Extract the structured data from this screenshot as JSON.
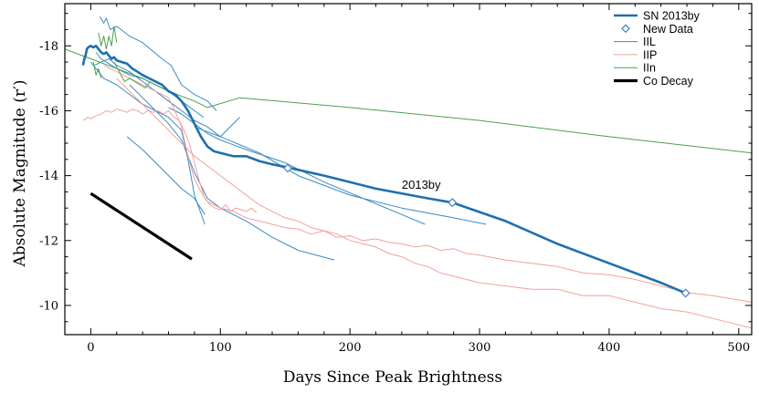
{
  "chart_data": {
    "type": "line",
    "xlabel": "Days Since Peak Brightness",
    "ylabel": "Absolute Magnitude (r′)",
    "xlim": [
      -20,
      510
    ],
    "ylim": [
      -9.1,
      -19.3
    ],
    "x_ticks": [
      0,
      100,
      200,
      300,
      400,
      500
    ],
    "y_ticks": [
      -10,
      -12,
      -14,
      -16,
      -18
    ],
    "legend_location": "top-right",
    "legend": [
      {
        "label": "SN 2013by",
        "style": "line-thick",
        "color": "#1f6fad"
      },
      {
        "label": "New Data",
        "style": "diamond",
        "color": "#4a80c0"
      },
      {
        "label": "IIL",
        "style": "line",
        "color": "#3a8ac2"
      },
      {
        "label": "IIP",
        "style": "line",
        "color": "#f4a09a"
      },
      {
        "label": "IIn",
        "style": "line",
        "color": "#4aa04a"
      },
      {
        "label": "Co Decay",
        "style": "line-heavy",
        "color": "#000000"
      }
    ],
    "annotations": [
      {
        "text": "2013by",
        "x": 240,
        "y": -13.6
      }
    ],
    "series": [
      {
        "name": "SN 2013by",
        "color": "#1f6fad",
        "width": 2.6,
        "x": [
          -6,
          -5,
          -4,
          -3,
          -2,
          0,
          2,
          4,
          6,
          8,
          10,
          12,
          14,
          16,
          18,
          20,
          24,
          28,
          32,
          36,
          40,
          45,
          50,
          55,
          60,
          65,
          70,
          75,
          80,
          85,
          90,
          95,
          100,
          110,
          120,
          130,
          140,
          152,
          180,
          220,
          260,
          279,
          320,
          360,
          400,
          440,
          459
        ],
        "y": [
          -17.4,
          -17.6,
          -17.7,
          -17.9,
          -17.95,
          -18.0,
          -17.95,
          -18.0,
          -17.9,
          -17.8,
          -17.75,
          -17.8,
          -17.7,
          -17.6,
          -17.65,
          -17.55,
          -17.5,
          -17.45,
          -17.3,
          -17.2,
          -17.1,
          -17.0,
          -16.9,
          -16.8,
          -16.6,
          -16.5,
          -16.3,
          -16.0,
          -15.6,
          -15.2,
          -14.9,
          -14.75,
          -14.7,
          -14.6,
          -14.6,
          -14.45,
          -14.35,
          -14.25,
          -14.0,
          -13.6,
          -13.3,
          -13.17,
          -12.6,
          -11.9,
          -11.3,
          -10.7,
          -10.38
        ]
      },
      {
        "name": "New Data",
        "type": "markers",
        "color": "#4a80c0",
        "x": [
          152,
          279,
          459
        ],
        "y": [
          -14.23,
          -13.17,
          -10.38
        ]
      },
      {
        "name": "IIL-a",
        "color": "#3a8ac2",
        "width": 1,
        "x": [
          7,
          10,
          12,
          15,
          20,
          30,
          40,
          55,
          62,
          70,
          80,
          90,
          97
        ],
        "y": [
          -18.9,
          -18.7,
          -18.85,
          -18.5,
          -18.6,
          -18.3,
          -18.1,
          -17.6,
          -17.4,
          -16.8,
          -16.5,
          -16.3,
          -16.0
        ]
      },
      {
        "name": "IIL-b",
        "color": "#3a8ac2",
        "width": 1,
        "x": [
          4,
          8,
          12,
          20,
          30,
          40,
          50,
          60,
          70,
          80,
          87
        ],
        "y": [
          -17.8,
          -17.6,
          -17.5,
          -17.3,
          -17.1,
          -17.0,
          -16.8,
          -16.6,
          -16.3,
          -16.0,
          -15.8
        ]
      },
      {
        "name": "IIL-c",
        "color": "#3a8ac2",
        "width": 1,
        "x": [
          3,
          8,
          14,
          20,
          30,
          40,
          50,
          60,
          70,
          80,
          90,
          100,
          115
        ],
        "y": [
          -17.4,
          -17.5,
          -17.6,
          -17.4,
          -17.2,
          -16.9,
          -16.6,
          -16.3,
          -16.0,
          -15.7,
          -15.5,
          -15.2,
          -15.8
        ]
      },
      {
        "name": "IIL-d",
        "color": "#3a8ac2",
        "width": 1,
        "x": [
          0,
          10,
          20,
          30,
          40,
          50,
          60,
          70,
          75,
          80,
          88
        ],
        "y": [
          -17.5,
          -17.0,
          -16.8,
          -16.5,
          -16.2,
          -16.0,
          -15.8,
          -15.4,
          -14.5,
          -13.4,
          -12.5
        ]
      },
      {
        "name": "IIL-e",
        "color": "#3a8ac2",
        "width": 1,
        "x": [
          28,
          40,
          50,
          60,
          70,
          80,
          88
        ],
        "y": [
          -15.2,
          -14.8,
          -14.4,
          -14.0,
          -13.6,
          -13.3,
          -12.8
        ]
      },
      {
        "name": "IIL-f",
        "color": "#3a8ac2",
        "width": 1,
        "x": [
          30,
          40,
          50,
          60,
          70,
          80,
          90,
          100,
          120,
          140,
          160,
          188
        ],
        "y": [
          -16.8,
          -16.4,
          -16.0,
          -15.6,
          -15.1,
          -14.1,
          -13.3,
          -13.0,
          -12.6,
          -12.1,
          -11.7,
          -11.4
        ]
      },
      {
        "name": "IIL-g",
        "color": "#3a8ac2",
        "width": 1,
        "x": [
          60,
          70,
          80,
          90,
          100,
          120,
          150,
          180,
          210,
          240,
          258
        ],
        "y": [
          -16.1,
          -15.9,
          -15.6,
          -15.3,
          -15.1,
          -14.8,
          -14.4,
          -13.8,
          -13.3,
          -12.8,
          -12.5
        ]
      },
      {
        "name": "IIL-h",
        "color": "#3a8ac2",
        "width": 1,
        "x": [
          80,
          100,
          130,
          160,
          200,
          240,
          280,
          305
        ],
        "y": [
          -15.5,
          -15.2,
          -14.7,
          -14.0,
          -13.4,
          -13.0,
          -12.7,
          -12.5
        ]
      },
      {
        "name": "IIP-a",
        "color": "#f4a09a",
        "width": 1,
        "x": [
          -6,
          -2,
          0,
          4,
          8,
          12,
          16,
          20,
          24,
          28,
          32,
          36,
          40,
          44,
          48,
          52,
          56,
          60,
          64,
          68,
          72,
          76,
          80,
          84,
          88,
          92,
          96,
          100,
          104,
          108,
          112,
          116,
          120,
          124,
          128
        ],
        "y": [
          -15.7,
          -15.8,
          -15.75,
          -15.85,
          -15.9,
          -16.0,
          -15.95,
          -16.05,
          -16.0,
          -15.95,
          -16.05,
          -16.0,
          -15.9,
          -16.0,
          -15.95,
          -16.0,
          -15.9,
          -16.0,
          -15.8,
          -15.7,
          -15.4,
          -15.0,
          -14.4,
          -13.8,
          -13.3,
          -13.1,
          -13.0,
          -12.95,
          -13.1,
          -12.9,
          -13.0,
          -12.95,
          -12.9,
          -13.0,
          -12.85
        ]
      },
      {
        "name": "IIP-b",
        "color": "#f4a09a",
        "width": 1,
        "x": [
          10,
          20,
          30,
          40,
          50,
          60,
          65,
          70,
          75,
          80,
          85,
          90,
          100,
          110,
          120,
          130,
          140,
          150,
          160,
          170,
          180,
          190,
          200,
          210,
          220,
          230,
          240,
          250,
          260,
          270,
          280,
          290,
          300,
          320,
          340,
          360,
          380,
          400,
          420,
          440,
          460,
          480,
          510
        ],
        "y": [
          -17.4,
          -17.2,
          -17.0,
          -16.8,
          -16.6,
          -16.4,
          -16.0,
          -15.5,
          -14.6,
          -13.9,
          -13.5,
          -13.2,
          -13.0,
          -12.9,
          -12.7,
          -12.6,
          -12.5,
          -12.4,
          -12.35,
          -12.2,
          -12.3,
          -12.1,
          -12.15,
          -12.0,
          -12.05,
          -11.95,
          -11.9,
          -11.8,
          -11.85,
          -11.7,
          -11.75,
          -11.6,
          -11.55,
          -11.4,
          -11.3,
          -11.2,
          -11.0,
          -10.95,
          -10.8,
          -10.6,
          -10.4,
          -10.3,
          -10.1
        ]
      },
      {
        "name": "IIP-c",
        "color": "#f4a09a",
        "width": 1,
        "x": [
          20,
          30,
          40,
          50,
          60,
          70,
          80,
          90,
          100,
          110,
          120,
          130,
          140,
          150,
          160,
          170,
          180,
          190,
          200,
          210,
          220,
          230,
          240,
          250,
          260,
          270,
          280,
          290,
          300,
          320,
          340,
          360,
          380,
          400,
          420,
          440,
          460,
          480,
          510
        ],
        "y": [
          -17.0,
          -16.6,
          -16.2,
          -15.8,
          -15.4,
          -15.0,
          -14.6,
          -14.3,
          -14.0,
          -13.7,
          -13.4,
          -13.1,
          -12.9,
          -12.7,
          -12.6,
          -12.4,
          -12.3,
          -12.2,
          -12.0,
          -11.9,
          -11.8,
          -11.6,
          -11.5,
          -11.3,
          -11.2,
          -11.0,
          -10.9,
          -10.8,
          -10.7,
          -10.6,
          -10.5,
          -10.5,
          -10.3,
          -10.3,
          -10.1,
          -9.9,
          -9.8,
          -9.6,
          -9.3
        ]
      },
      {
        "name": "IIn-a",
        "color": "#4aa04a",
        "width": 1,
        "x": [
          -20,
          0,
          20,
          40,
          60,
          80,
          90,
          115,
          200,
          300,
          400,
          510
        ],
        "y": [
          -17.9,
          -17.6,
          -17.3,
          -17.0,
          -16.6,
          -16.3,
          -16.1,
          -16.4,
          -16.1,
          -15.7,
          -15.2,
          -14.7
        ]
      },
      {
        "name": "IIn-b",
        "color": "#4aa04a",
        "width": 1,
        "x": [
          6,
          8,
          10,
          12,
          14,
          16,
          18,
          20
        ],
        "y": [
          -18.4,
          -18.0,
          -18.3,
          -17.9,
          -18.3,
          -18.0,
          -18.6,
          -18.1
        ]
      },
      {
        "name": "IIn-c",
        "color": "#4aa04a",
        "width": 1,
        "x": [
          18,
          22,
          26,
          30,
          34,
          38,
          42,
          46
        ],
        "y": [
          -17.5,
          -17.2,
          -16.9,
          -17.0,
          -16.9,
          -16.8,
          -16.7,
          -16.9
        ]
      },
      {
        "name": "IIn-d",
        "color": "#4aa04a",
        "width": 1,
        "x": [
          2,
          4,
          6,
          8
        ],
        "y": [
          -17.5,
          -17.1,
          -17.3,
          -17.0
        ]
      },
      {
        "name": "Co Decay",
        "color": "#000000",
        "width": 3.2,
        "x": [
          0,
          78
        ],
        "y": [
          -13.45,
          -11.43
        ]
      }
    ]
  }
}
